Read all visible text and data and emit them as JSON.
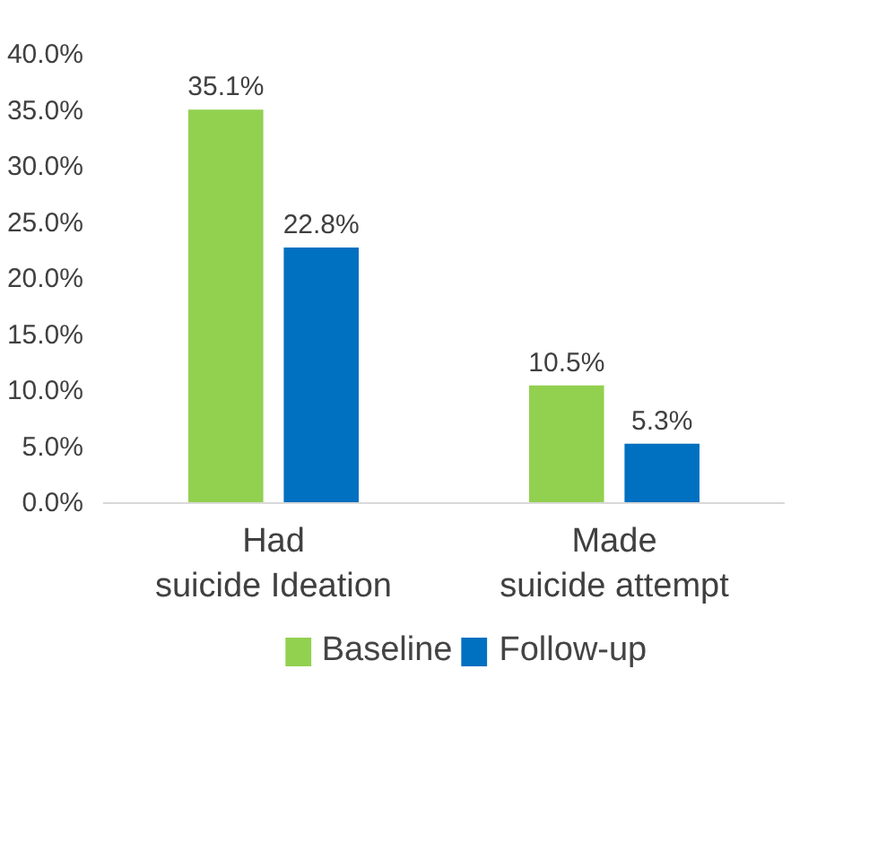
{
  "chart_data": {
    "type": "bar",
    "categories": [
      "Had suicide Ideation",
      "Made suicide attempt"
    ],
    "series": [
      {
        "name": "Baseline",
        "color": "#92d050",
        "values": [
          35.1,
          10.5
        ],
        "value_labels": [
          "35.1%",
          "10.5%"
        ]
      },
      {
        "name": "Follow-up",
        "color": "#0070c0",
        "values": [
          22.8,
          5.3
        ],
        "value_labels": [
          "22.8%",
          "5.3%"
        ]
      }
    ],
    "ylim": [
      0,
      40
    ],
    "yticks": [
      {
        "value": 0,
        "label": "0.0%"
      },
      {
        "value": 5,
        "label": "5.0%"
      },
      {
        "value": 10,
        "label": "10.0%"
      },
      {
        "value": 15,
        "label": "15.0%"
      },
      {
        "value": 20,
        "label": "20.0%"
      },
      {
        "value": 25,
        "label": "25.0%"
      },
      {
        "value": 30,
        "label": "30.0%"
      },
      {
        "value": 35,
        "label": "35.0%"
      },
      {
        "value": 40,
        "label": "40.0%"
      }
    ],
    "grid": false,
    "legend": "bottom"
  }
}
